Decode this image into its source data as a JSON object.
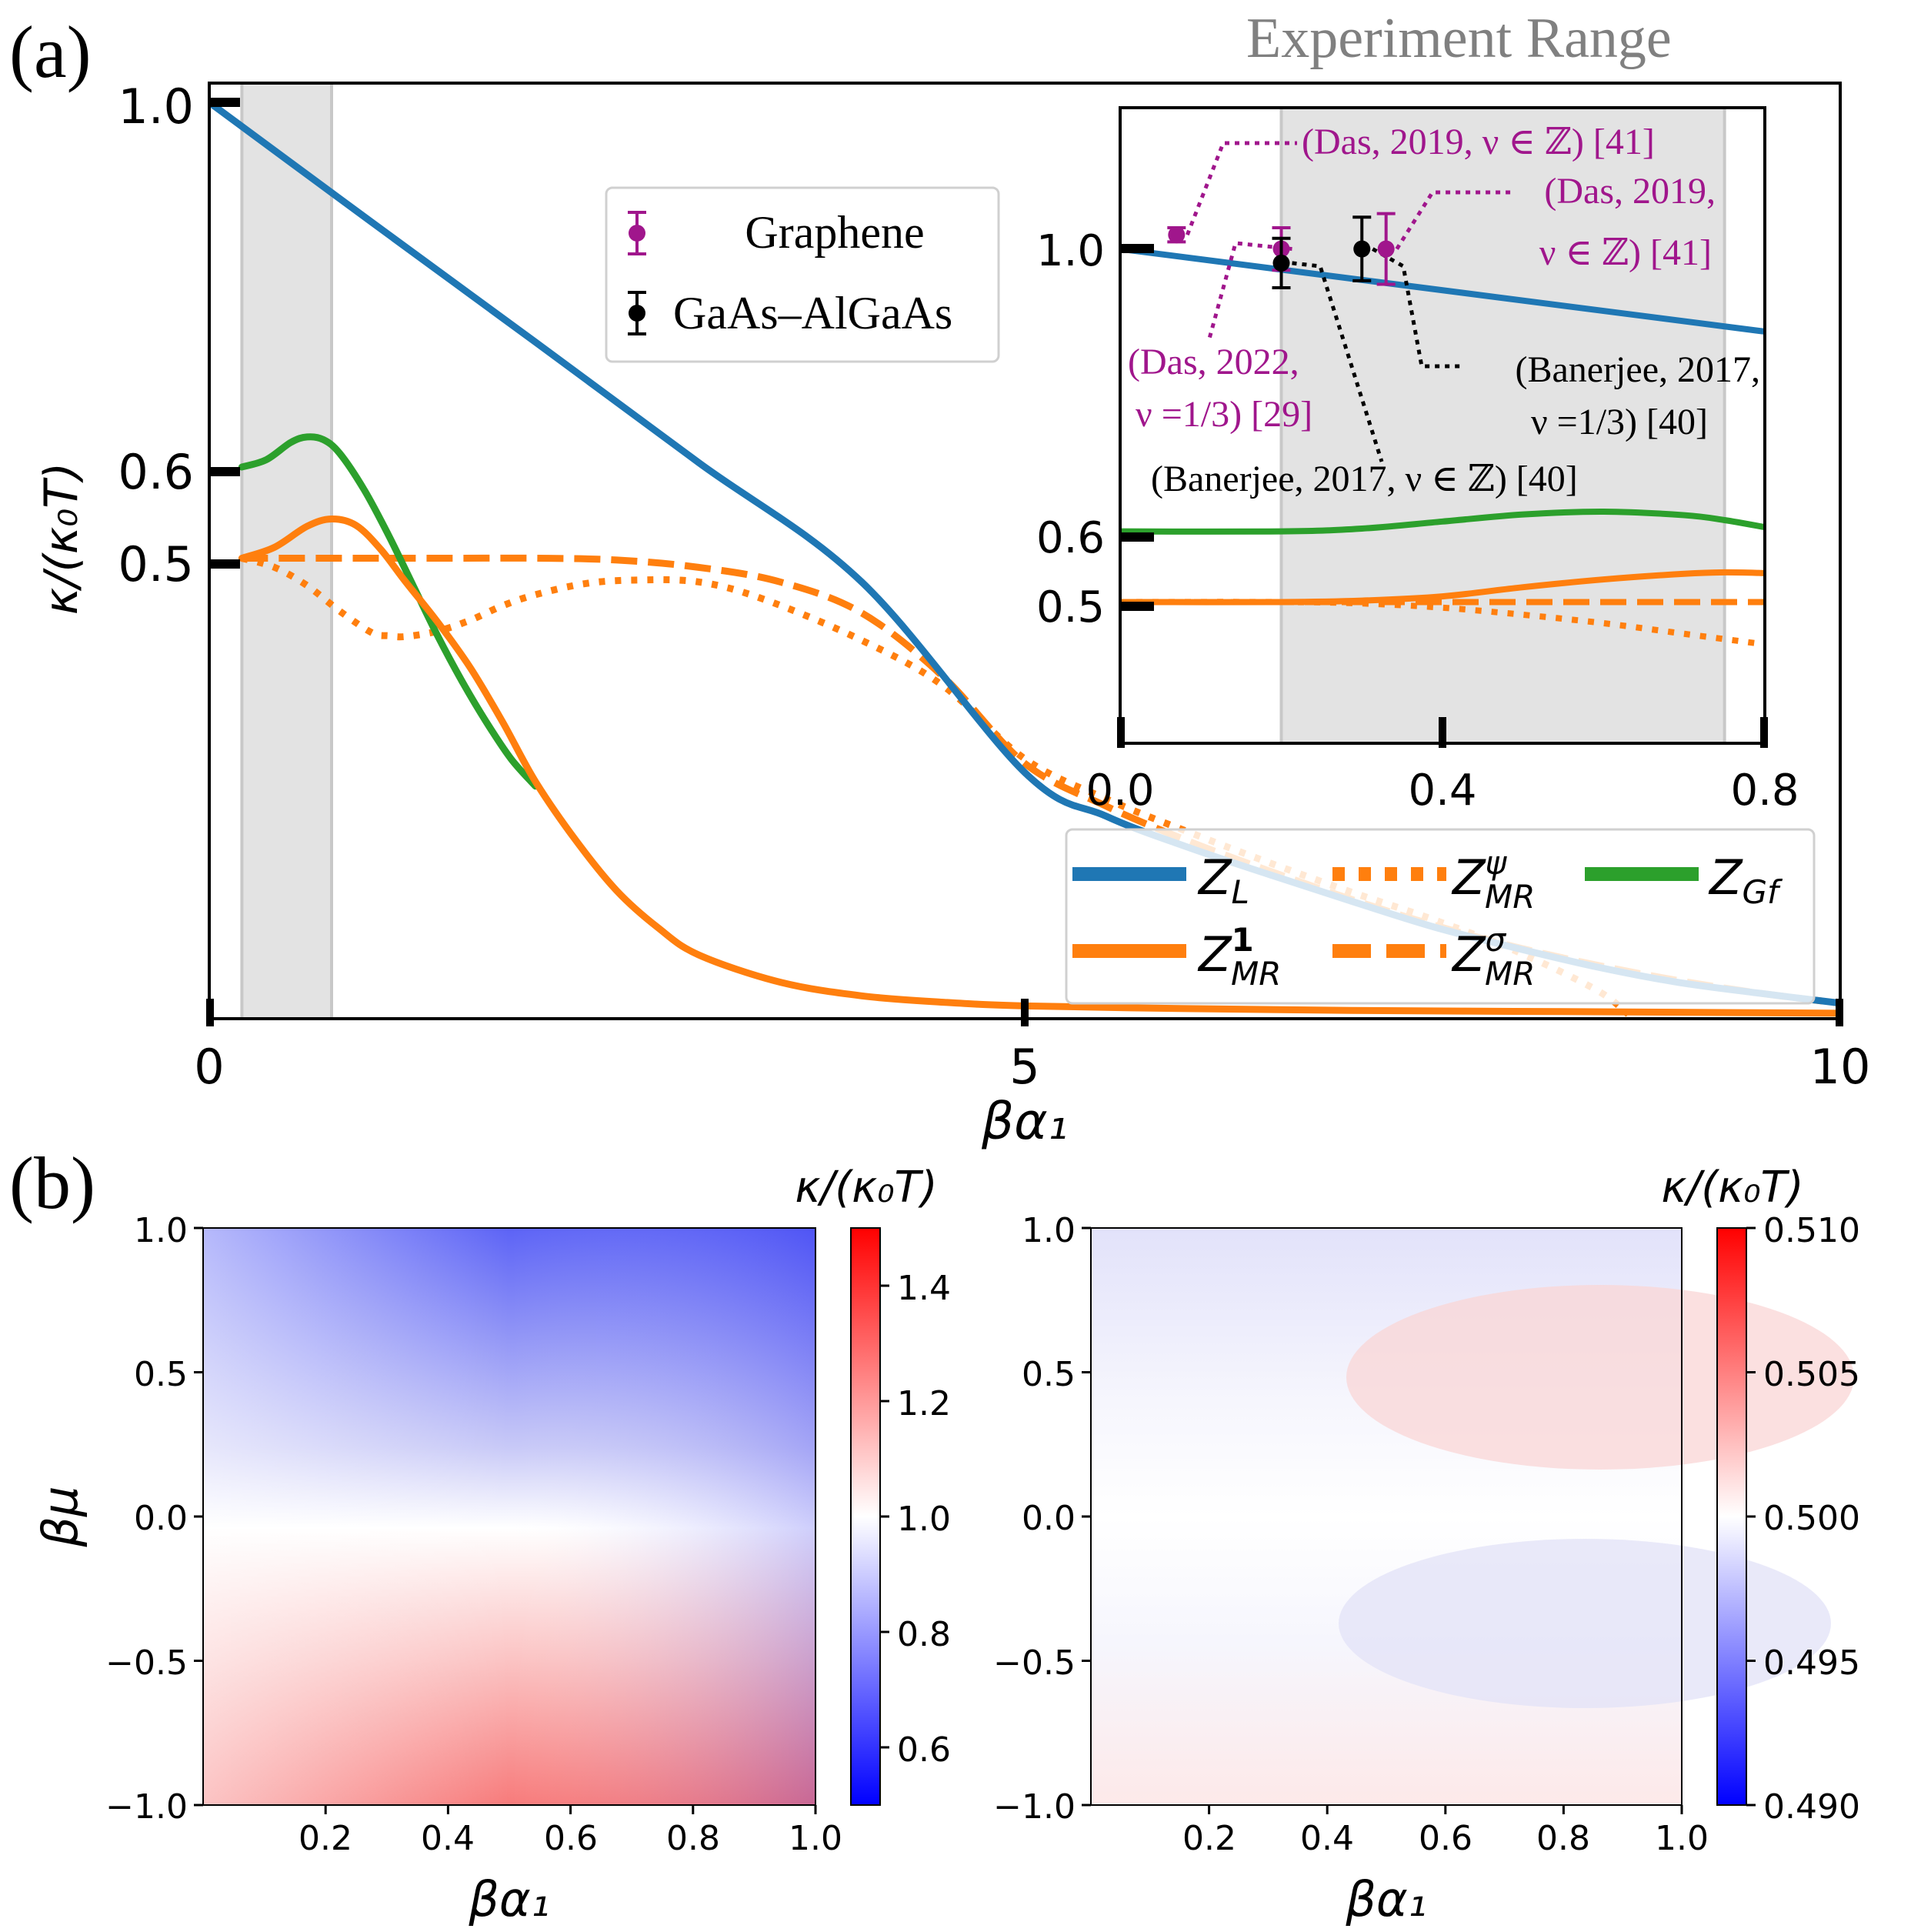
{
  "panel_labels": {
    "a": "(a)",
    "b": "(b)"
  },
  "colors": {
    "blue": "#1f77b4",
    "orange": "#ff7f0e",
    "green": "#2ca02c",
    "purple": "#a0168c",
    "black": "#000000",
    "shade": "#e3e3e3"
  },
  "chart_data": [
    {
      "id": "main",
      "type": "line",
      "xlabel": "βα₁",
      "ylabel": "κ/(κ₀T)",
      "xlim": [
        0,
        10
      ],
      "ylim": [
        0,
        1.0
      ],
      "x_ticks": [
        "0",
        "5",
        "10"
      ],
      "y_ticks": [
        "0.5",
        "0.6",
        "1.0"
      ],
      "experiment_range_label": "Experiment Range",
      "shaded_range": [
        0.2,
        0.75
      ],
      "series": [
        {
          "name": "Z_L",
          "style": "solid",
          "color": "blue",
          "x": [
            0,
            1,
            2,
            3,
            4,
            5,
            5.5,
            6,
            6.5,
            7,
            7.5,
            8,
            8.5,
            9,
            9.5,
            10
          ],
          "y": [
            1.0,
            0.868,
            0.737,
            0.605,
            0.474,
            0.265,
            0.217,
            0.183,
            0.153,
            0.124,
            0.096,
            0.073,
            0.052,
            0.035,
            0.023,
            0.012
          ]
        },
        {
          "name": "Z_MR^1",
          "style": "solid",
          "color": "orange",
          "x": [
            0.2,
            0.4,
            0.6,
            0.75,
            0.9,
            1.05,
            1.2,
            1.4,
            1.6,
            1.8,
            2.0,
            2.25,
            2.5,
            2.75,
            3,
            3.5,
            4,
            4.5,
            5,
            6,
            7,
            8,
            9,
            10
          ],
          "y": [
            0.5,
            0.512,
            0.535,
            0.543,
            0.536,
            0.51,
            0.475,
            0.43,
            0.38,
            0.32,
            0.255,
            0.19,
            0.135,
            0.095,
            0.065,
            0.035,
            0.02,
            0.013,
            0.009,
            0.006,
            0.004,
            0.003,
            0.002,
            0.001
          ]
        },
        {
          "name": "Z_MR^ψ",
          "style": "dotted",
          "color": "orange",
          "x": [
            0.2,
            0.4,
            0.6,
            0.8,
            1.0,
            1.1,
            1.2,
            1.4,
            1.6,
            1.8,
            2.0,
            2.3,
            2.6,
            3,
            3.4,
            4,
            4.5,
            5,
            5.5,
            6,
            6.5,
            7,
            7.5,
            8,
            8.5,
            8.7
          ],
          "y": [
            0.5,
            0.49,
            0.47,
            0.442,
            0.418,
            0.415,
            0.414,
            0.42,
            0.432,
            0.448,
            0.46,
            0.472,
            0.476,
            0.474,
            0.455,
            0.41,
            0.36,
            0.28,
            0.236,
            0.2,
            0.166,
            0.134,
            0.104,
            0.07,
            0.027,
            0.0
          ]
        },
        {
          "name": "Z_MR^σ",
          "style": "dashed",
          "color": "orange",
          "x": [
            0.2,
            1,
            1.5,
            2,
            2.5,
            3,
            3.5,
            4,
            4.5,
            5,
            5.5,
            6,
            6.5,
            7,
            7.5,
            8,
            8.5,
            9,
            9.5,
            10
          ],
          "y": [
            0.5,
            0.5,
            0.5,
            0.5,
            0.498,
            0.49,
            0.474,
            0.44,
            0.37,
            0.275,
            0.228,
            0.19,
            0.157,
            0.126,
            0.098,
            0.074,
            0.054,
            0.037,
            0.023,
            0.012
          ]
        },
        {
          "name": "Z_Gf",
          "style": "solid",
          "color": "green",
          "x": [
            0.2,
            0.35,
            0.5,
            0.6,
            0.7,
            0.8,
            0.95,
            1.1,
            1.25,
            1.4,
            1.55,
            1.7,
            1.85,
            2.0
          ],
          "y": [
            0.6,
            0.608,
            0.627,
            0.633,
            0.63,
            0.615,
            0.575,
            0.525,
            0.47,
            0.415,
            0.365,
            0.32,
            0.28,
            0.25
          ]
        }
      ],
      "legend_marks": [
        {
          "label": "Z_L",
          "base": "Z",
          "sub": "L",
          "sup": "",
          "color": "blue",
          "style": "solid"
        },
        {
          "label": "Z_MR^1",
          "base": "Z",
          "sub": "MR",
          "sup": "1",
          "color": "orange",
          "style": "solid"
        },
        {
          "label": "Z_MR^ψ",
          "base": "Z",
          "sub": "MR",
          "sup": "ψ",
          "color": "orange",
          "style": "dotted"
        },
        {
          "label": "Z_MR^σ",
          "base": "Z",
          "sub": "MR",
          "sup": "σ",
          "color": "orange",
          "style": "dashed"
        },
        {
          "label": "Z_Gf",
          "base": "Z",
          "sub": "Gf",
          "sup": "",
          "color": "green",
          "style": "solid"
        }
      ],
      "marker_legend": [
        {
          "label": "Graphene",
          "color": "purple"
        },
        {
          "label": "GaAs–AlGaAs",
          "color": "black"
        }
      ]
    },
    {
      "id": "inset",
      "type": "line",
      "xlim": [
        0,
        0.8
      ],
      "ylim": [
        0.3,
        1.2
      ],
      "x_ticks": [
        "0.0",
        "0.4",
        "0.8"
      ],
      "y_ticks": [
        "0.5",
        "0.6",
        "1.0"
      ],
      "shaded_range": [
        0.2,
        0.75
      ],
      "series": [
        {
          "name": "Z_L",
          "style": "solid",
          "color": "blue",
          "x": [
            0,
            0.8
          ],
          "y": [
            1.0,
            0.883
          ]
        },
        {
          "name": "Z_Gf",
          "style": "solid",
          "color": "green",
          "x": [
            0,
            0.2,
            0.3,
            0.4,
            0.5,
            0.6,
            0.7,
            0.75,
            0.8
          ],
          "y": [
            0.6,
            0.6,
            0.604,
            0.614,
            0.624,
            0.628,
            0.623,
            0.616,
            0.606
          ]
        },
        {
          "name": "Z_MR^1",
          "style": "solid",
          "color": "orange",
          "x": [
            0,
            0.2,
            0.3,
            0.4,
            0.5,
            0.6,
            0.7,
            0.75,
            0.8
          ],
          "y": [
            0.5,
            0.5,
            0.502,
            0.508,
            0.521,
            0.532,
            0.54,
            0.542,
            0.541
          ]
        },
        {
          "name": "Z_MR^σ",
          "style": "dashed",
          "color": "orange",
          "x": [
            0,
            0.8
          ],
          "y": [
            0.5,
            0.5
          ]
        },
        {
          "name": "Z_MR^ψ",
          "style": "dotted",
          "color": "orange",
          "x": [
            0,
            0.2,
            0.3,
            0.4,
            0.5,
            0.6,
            0.7,
            0.8
          ],
          "y": [
            0.5,
            0.5,
            0.498,
            0.492,
            0.482,
            0.47,
            0.455,
            0.44
          ]
        }
      ],
      "data_points": [
        {
          "group": "Graphene",
          "color": "purple",
          "x": 0.07,
          "y": 1.02,
          "err": 0.01
        },
        {
          "group": "Graphene",
          "color": "purple",
          "x": 0.2,
          "y": 1.0,
          "err": 0.03
        },
        {
          "group": "Graphene",
          "color": "purple",
          "x": 0.33,
          "y": 1.0,
          "err": 0.05
        },
        {
          "group": "GaAs–AlGaAs",
          "color": "black",
          "x": 0.2,
          "y": 0.98,
          "err": 0.035
        },
        {
          "group": "GaAs–AlGaAs",
          "color": "black",
          "x": 0.3,
          "y": 1.0,
          "err": 0.045
        }
      ],
      "annotations": [
        {
          "lines": [
            "(Das, 2019, ν ∈ ℤ) [41]"
          ],
          "color": "purple"
        },
        {
          "lines": [
            "(Das, 2019,",
            "ν ∈ ℤ) [41]"
          ],
          "color": "purple"
        },
        {
          "lines": [
            "(Das, 2022,",
            "ν =1/3) [29]"
          ],
          "color": "purple"
        },
        {
          "lines": [
            "(Banerjee, 2017,",
            "ν =1/3) [40]"
          ],
          "color": "black"
        },
        {
          "lines": [
            "(Banerjee, 2017, ν ∈ ℤ) [40]"
          ],
          "color": "black"
        }
      ]
    },
    {
      "id": "heatmap_left",
      "type": "heatmap",
      "xlabel": "βα₁",
      "ylabel": "βμ",
      "xlim": [
        0,
        1.0
      ],
      "ylim": [
        -1.0,
        1.0
      ],
      "x_ticks": [
        "0.2",
        "0.4",
        "0.6",
        "0.8",
        "1.0"
      ],
      "y_ticks": [
        "1.0",
        "0.5",
        "0.0",
        "−0.5",
        "−1.0"
      ],
      "colorbar": {
        "label": "κ/(κ₀T)",
        "min": 0.5,
        "max": 1.5,
        "ticks": [
          "1.4",
          "1.2",
          "1.0",
          "0.8",
          "0.6"
        ]
      },
      "value_range_observed": [
        0.55,
        1.28
      ]
    },
    {
      "id": "heatmap_right",
      "type": "heatmap",
      "xlabel": "βα₁",
      "ylabel": "",
      "xlim": [
        0,
        1.0
      ],
      "ylim": [
        -1.0,
        1.0
      ],
      "x_ticks": [
        "0.2",
        "0.4",
        "0.6",
        "0.8",
        "1.0"
      ],
      "y_ticks": [
        "1.0",
        "0.5",
        "0.0",
        "−0.5",
        "−1.0"
      ],
      "colorbar": {
        "label": "κ/(κ₀T)",
        "min": 0.49,
        "max": 0.51,
        "ticks": [
          "0.510",
          "0.505",
          "0.500",
          "0.495",
          "0.490"
        ]
      },
      "value_range_observed": [
        0.497,
        0.503
      ]
    }
  ]
}
